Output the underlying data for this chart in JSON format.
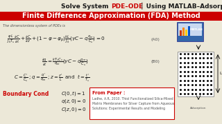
{
  "bg_color": "#ece8d8",
  "title1_text": "Solve System PDE–ODE │ Using MATLAB–Adsorption",
  "title1_prefix": "Solve System ",
  "title1_red": "PDE–ODE",
  "title1_suffix": " │ Using MATLAB–Adsorption",
  "title2_text": "Finite Difference Approximation (FDA) Method",
  "title2_bg": "#cc0000",
  "title2_fg": "#ffffff",
  "subtitle": "The dimensionless system of PDEs is",
  "red_color": "#cc0000",
  "black_color": "#1a1a1a",
  "gray_color": "#555555",
  "paper_border": "#cc0000",
  "paper_bg": "#ffffff",
  "paper_title": "From Paper :",
  "paper_ref_line1": "Ladhe, A.R, 2010. Thiol Functionalized Silica-Mixed",
  "paper_ref_line2": "Matrix Membranes for Silver Capture from Aqueous",
  "paper_ref_line3": "Solutions: Experimental Results and Modeling",
  "bc_label": "Boundary Cond",
  "bc1": "$C(0,t) = 1$",
  "bc2": "$q(z,0) = 0$",
  "bc3": "$C(z,0) = 0$",
  "tag_a0": "(A0)",
  "tag_b0": "(B0)"
}
